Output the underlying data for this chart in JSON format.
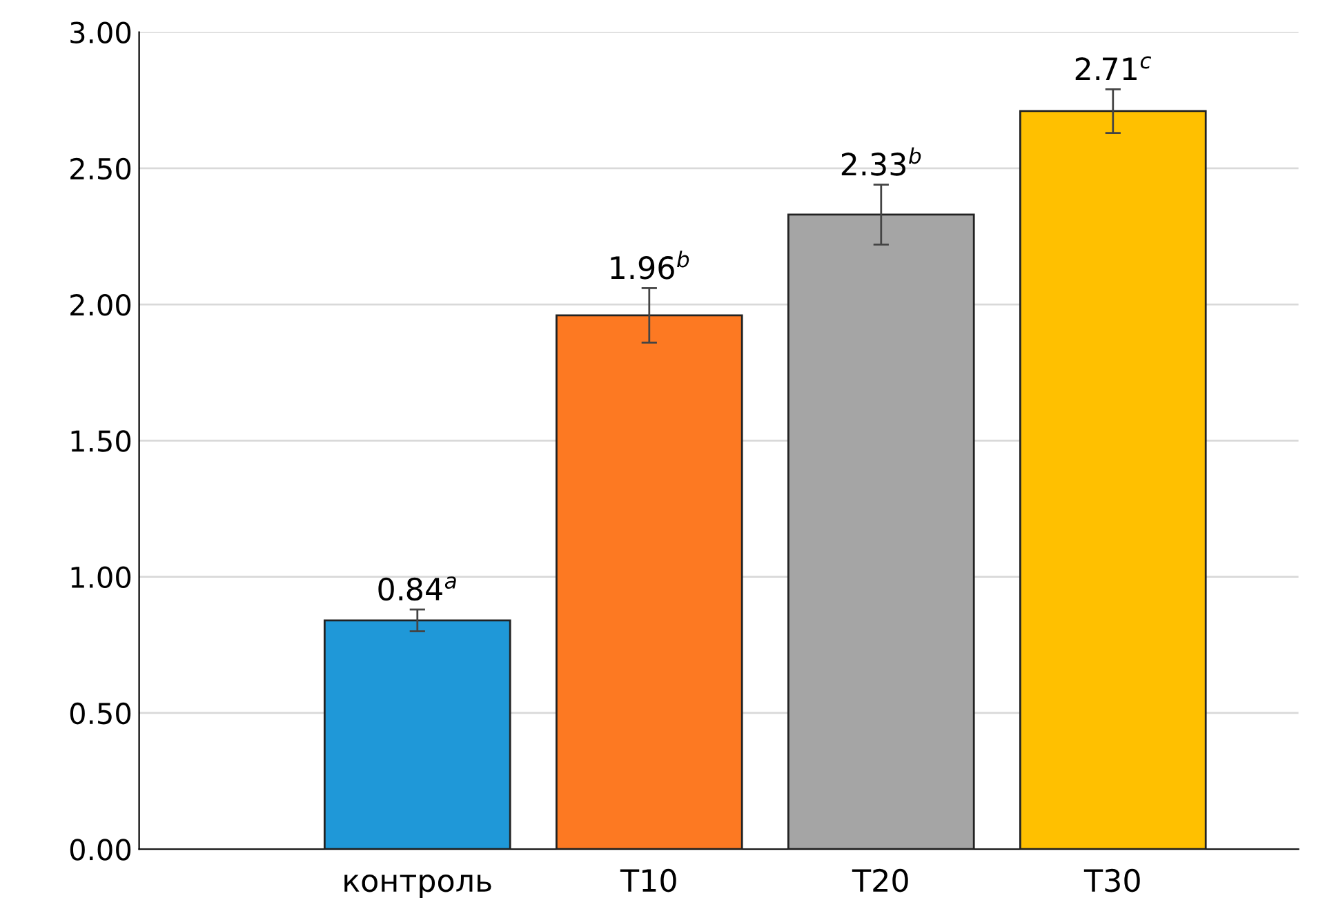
{
  "chart_data": {
    "type": "bar",
    "categories": [
      "контроль",
      "T10",
      "T20",
      "T30"
    ],
    "values": [
      0.84,
      1.96,
      2.33,
      2.71
    ],
    "colors": [
      "#1f98d8",
      "#fd7922",
      "#a5a5a5",
      "#ffc000"
    ],
    "errors": [
      0.04,
      0.1,
      0.11,
      0.08
    ],
    "value_labels": [
      "0.84$^{a}$",
      "1.96$^{b}$",
      "2.33$^{b}$",
      "2.71$^{c}$"
    ],
    "ylim": [
      0,
      3
    ],
    "yticks": [
      {
        "value": 0,
        "label": "0.00"
      },
      {
        "value": 0.5,
        "label": "0.50"
      },
      {
        "value": 1,
        "label": "1.00"
      },
      {
        "value": 1.5,
        "label": "1.50"
      },
      {
        "value": 2,
        "label": "2.00"
      },
      {
        "value": 2.5,
        "label": "2.50"
      },
      {
        "value": 3,
        "label": "3.00"
      }
    ],
    "grid": "y"
  }
}
